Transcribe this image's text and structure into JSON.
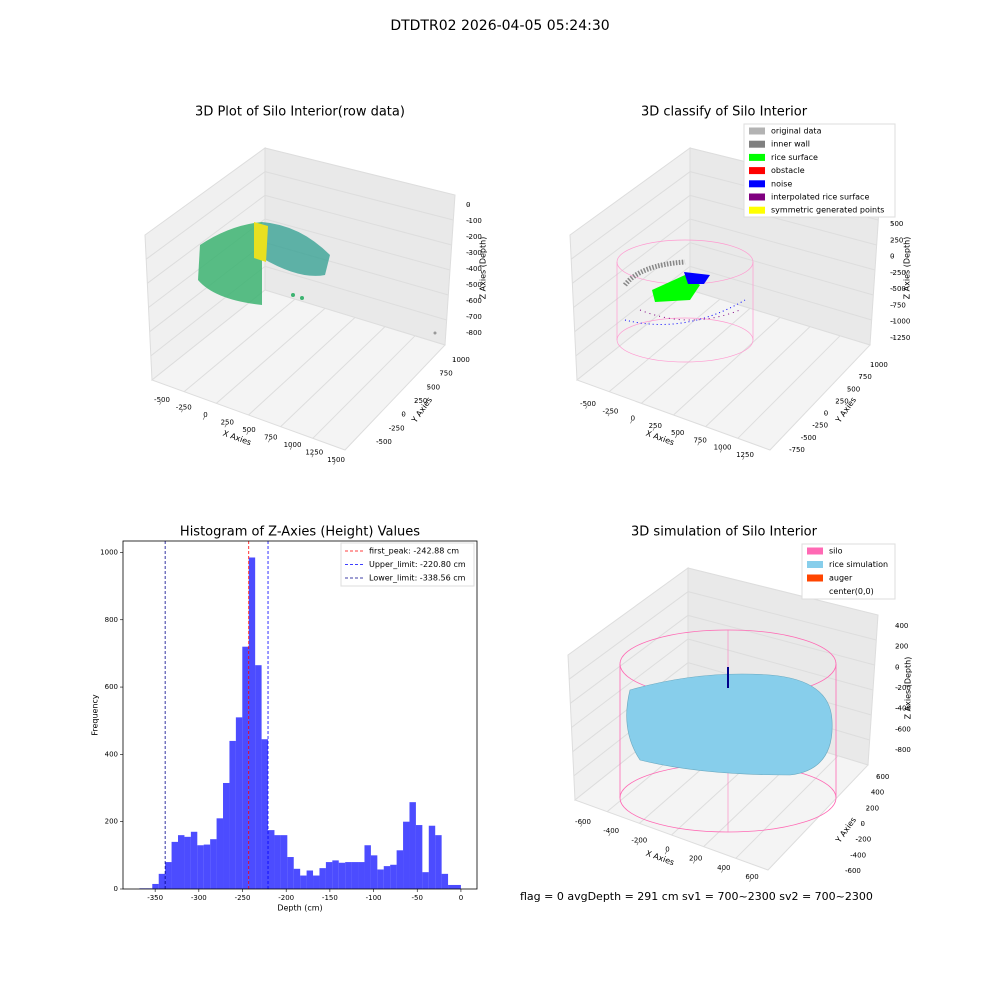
{
  "suptitle": "DTDTR02 2026-04-05 05:24:30",
  "footer": "flag = 0     avgDepth = 291 cm  sv1 = 700~2300  sv2 = 700~2300",
  "chart_data": [
    {
      "type": "scatter3d",
      "title": "3D Plot of Silo Interior(row data)",
      "xlabel": "X Axies",
      "ylabel": "Y Axies",
      "zlabel": "Z Axies (Depth)",
      "xticks": [
        -500,
        -250,
        0,
        250,
        500,
        750,
        1000,
        1250,
        1500
      ],
      "yticks": [
        -500,
        -250,
        0,
        250,
        500,
        750,
        1000
      ],
      "zticks": [
        0,
        -100,
        -200,
        -300,
        -400,
        -500,
        -600,
        -700,
        -800
      ]
    },
    {
      "type": "scatter3d",
      "title": "3D classify of Silo Interior",
      "xlabel": "X Axies",
      "ylabel": "Y Axies",
      "zlabel": "Z Axies (Depth)",
      "xticks": [
        -500,
        -250,
        0,
        250,
        500,
        750,
        1000,
        1250
      ],
      "yticks": [
        -750,
        -500,
        -250,
        0,
        250,
        500,
        750,
        1000
      ],
      "zticks": [
        500,
        250,
        0,
        -250,
        -500,
        -750,
        -1000,
        -1250
      ],
      "legend": [
        {
          "name": "original data",
          "color": "#b3b3b3"
        },
        {
          "name": "inner wall",
          "color": "#808080"
        },
        {
          "name": "rice surface",
          "color": "#00ff00"
        },
        {
          "name": "obstacle",
          "color": "#ff0000"
        },
        {
          "name": "noise",
          "color": "#0000ff"
        },
        {
          "name": "interpolated rice surface",
          "color": "#800080"
        },
        {
          "name": "symmetric generated points",
          "color": "#ffff00"
        }
      ]
    },
    {
      "type": "histogram",
      "title": "Histogram of Z-Axies (Height) Values",
      "xlabel": "Depth (cm)",
      "ylabel": "Frequency",
      "color": "#0000ff",
      "bins": [
        -368,
        -360.64,
        -353.28,
        -345.92,
        -338.56,
        -331.2,
        -323.84,
        -316.48,
        -309.12,
        -301.76,
        -294.4,
        -287.04,
        -279.68,
        -272.32,
        -264.96,
        -257.6,
        -250.24,
        -242.88,
        -235.52,
        -228.16,
        -220.8,
        -213.44,
        -206.08,
        -198.72,
        -191.36,
        -184,
        -176.64,
        -169.28,
        -161.92,
        -154.56,
        -147.2,
        -139.84,
        -132.48,
        -125.12,
        -117.76,
        -110.4,
        -103.04,
        -95.68,
        -88.32,
        -80.96,
        -73.6,
        -66.24,
        -58.88,
        -51.52,
        -44.16,
        -36.8,
        -29.44,
        -22.08,
        -14.72,
        -7.36,
        0
      ],
      "counts": [
        2,
        2,
        15,
        45,
        80,
        140,
        160,
        155,
        170,
        130,
        132,
        148,
        210,
        315,
        440,
        510,
        720,
        985,
        665,
        445,
        175,
        160,
        160,
        95,
        60,
        40,
        55,
        40,
        62,
        80,
        85,
        78,
        80,
        80,
        80,
        130,
        100,
        58,
        68,
        72,
        115,
        200,
        258,
        190,
        50,
        188,
        160,
        45,
        12,
        12
      ],
      "xlim": [
        -386.8,
        18.4
      ],
      "ylim": [
        0,
        1034
      ],
      "xticks": [
        -350,
        -300,
        -250,
        -200,
        -150,
        -100,
        -50,
        0
      ],
      "yticks": [
        0,
        200,
        400,
        600,
        800,
        1000
      ],
      "lines": [
        {
          "label": "first_peak: -242.88 cm",
          "value": -242.88,
          "color": "#ff0000"
        },
        {
          "label": "Upper_limit: -220.80 cm",
          "value": -220.8,
          "color": "#0000ff"
        },
        {
          "label": "Lower_limit: -338.56 cm",
          "value": -338.56,
          "color": "#00008b"
        }
      ]
    },
    {
      "type": "surface3d",
      "title": "3D simulation of Silo Interior",
      "xlabel": "X Axies",
      "ylabel": "Y Axies",
      "zlabel": "Z Axies (Depth)",
      "xticks": [
        -600,
        -400,
        -200,
        0,
        200,
        400,
        600
      ],
      "yticks": [
        -600,
        -400,
        -200,
        0,
        200,
        400,
        600
      ],
      "zticks": [
        400,
        200,
        0,
        -200,
        -400,
        -600,
        -800
      ],
      "legend": [
        {
          "name": "silo",
          "color": "#ff69b4"
        },
        {
          "name": "rice simulation",
          "color": "#87ceeb"
        },
        {
          "name": "auger",
          "color": "#ff4500"
        },
        {
          "name": "center(0,0)",
          "color": "#ffffff"
        }
      ]
    }
  ]
}
